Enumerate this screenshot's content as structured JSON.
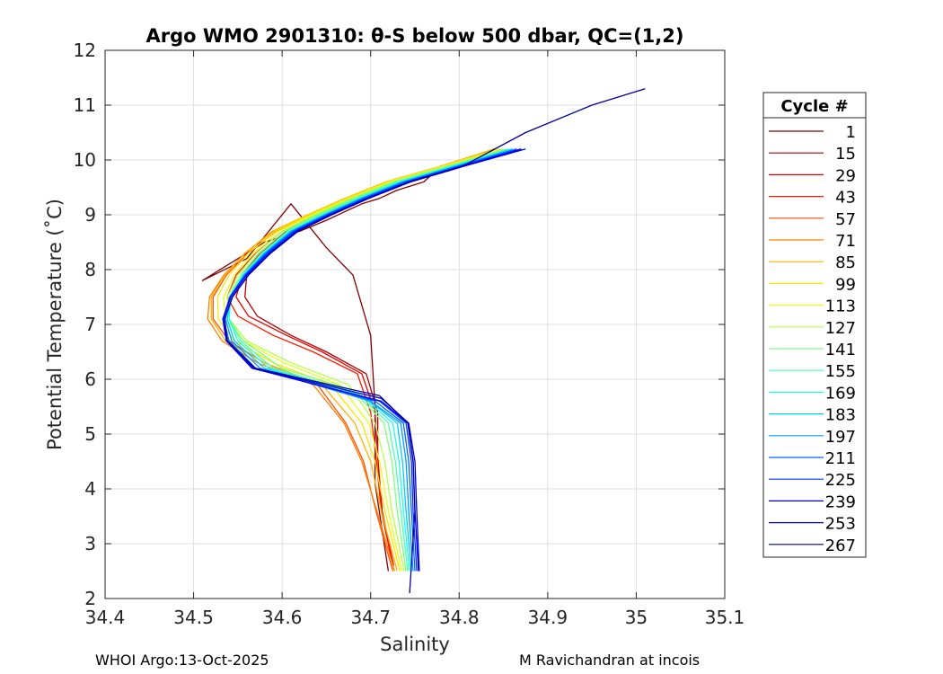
{
  "chart_data": {
    "type": "line",
    "title": "Argo WMO 2901310: θ-S below 500 dbar,  QC=(1,2)",
    "xlabel": "Salinity",
    "ylabel": "Potential Temperature (˚C)",
    "xlim": [
      34.4,
      35.1
    ],
    "ylim": [
      2,
      12
    ],
    "xticks": [
      34.4,
      34.5,
      34.6,
      34.7,
      34.8,
      34.9,
      35,
      35.1
    ],
    "xtick_labels": [
      "34.4",
      "34.5",
      "34.6",
      "34.7",
      "34.8",
      "34.9",
      "35",
      "35.1"
    ],
    "yticks": [
      2,
      3,
      4,
      5,
      6,
      7,
      8,
      9,
      10,
      11,
      12
    ],
    "ytick_labels": [
      "2",
      "3",
      "4",
      "5",
      "6",
      "7",
      "8",
      "9",
      "10",
      "11",
      "12"
    ],
    "grid": true,
    "legend": {
      "title": "Cycle #",
      "placement": "outside-right",
      "entries": [
        "1",
        "15",
        "29",
        "43",
        "57",
        "71",
        "85",
        "99",
        "113",
        "127",
        "141",
        "155",
        "169",
        "183",
        "197",
        "211",
        "225",
        "239",
        "253",
        "267"
      ],
      "colors": [
        "#800000",
        "#b30000",
        "#e60000",
        "#ff1a00",
        "#ff4d00",
        "#ff8000",
        "#ffb300",
        "#ffe600",
        "#e6ff1a",
        "#b3ff4d",
        "#80ff80",
        "#4dffb3",
        "#1affe6",
        "#00ccff",
        "#0099ff",
        "#0066ff",
        "#0033ff",
        "#0000ff",
        "#0000cc",
        "#000099"
      ]
    },
    "series": [
      {
        "name": "1",
        "x": [
          34.78,
          34.76,
          34.73,
          34.71,
          34.69,
          34.67,
          34.65,
          34.62,
          34.58,
          34.55,
          34.51,
          34.56,
          34.58,
          34.61,
          34.65,
          34.68,
          34.7,
          34.705,
          34.705,
          34.72
        ],
        "y": [
          9.9,
          9.6,
          9.45,
          9.3,
          9.2,
          9.05,
          8.9,
          8.7,
          8.5,
          8.2,
          7.8,
          8.2,
          8.6,
          9.2,
          8.4,
          7.9,
          6.8,
          5.5,
          4.1,
          2.5
        ]
      },
      {
        "name": "15",
        "x": [
          34.84,
          34.78,
          34.73,
          34.69,
          34.65,
          34.61,
          34.58,
          34.56,
          34.558,
          34.572,
          34.61,
          34.65,
          34.695,
          34.708,
          34.708,
          34.713,
          34.726
        ],
        "y": [
          10.2,
          9.87,
          9.6,
          9.3,
          9.0,
          8.7,
          8.3,
          7.9,
          7.5,
          7.15,
          6.8,
          6.5,
          6.1,
          5.4,
          4.6,
          3.6,
          2.6
        ]
      },
      {
        "name": "29",
        "x": [
          34.84,
          34.78,
          34.73,
          34.685,
          34.645,
          34.605,
          34.575,
          34.555,
          34.548,
          34.562,
          34.605,
          34.645,
          34.69,
          34.705,
          34.708,
          34.712,
          34.725
        ],
        "y": [
          10.2,
          9.87,
          9.6,
          9.3,
          9.0,
          8.7,
          8.3,
          7.9,
          7.5,
          7.15,
          6.8,
          6.5,
          6.1,
          5.4,
          4.6,
          3.6,
          2.6
        ]
      },
      {
        "name": "43",
        "x": [
          34.84,
          34.78,
          34.725,
          34.68,
          34.64,
          34.6,
          34.57,
          34.548,
          34.538,
          34.55,
          34.59,
          34.635,
          34.685,
          34.7,
          34.706,
          34.712,
          34.726
        ],
        "y": [
          10.2,
          9.87,
          9.6,
          9.3,
          9.0,
          8.7,
          8.3,
          7.9,
          7.5,
          7.15,
          6.8,
          6.5,
          6.1,
          5.4,
          4.6,
          3.6,
          2.6
        ]
      },
      {
        "name": "57",
        "x": [
          34.84,
          34.778,
          34.72,
          34.675,
          34.633,
          34.593,
          34.561,
          34.537,
          34.522,
          34.522,
          34.54,
          34.58,
          34.64,
          34.672,
          34.692,
          34.706,
          34.725
        ],
        "y": [
          10.2,
          9.87,
          9.6,
          9.3,
          9.0,
          8.7,
          8.3,
          7.9,
          7.5,
          7.1,
          6.7,
          6.3,
          5.9,
          5.2,
          4.5,
          3.6,
          2.5
        ]
      },
      {
        "name": "71",
        "x": [
          34.84,
          34.777,
          34.718,
          34.672,
          34.63,
          34.59,
          34.558,
          34.534,
          34.518,
          34.516,
          34.532,
          34.572,
          34.635,
          34.67,
          34.69,
          34.707,
          34.727
        ],
        "y": [
          10.2,
          9.87,
          9.6,
          9.3,
          9.0,
          8.7,
          8.3,
          7.9,
          7.5,
          7.1,
          6.7,
          6.3,
          5.9,
          5.2,
          4.5,
          3.6,
          2.5
        ]
      },
      {
        "name": "85",
        "x": [
          34.84,
          34.776,
          34.717,
          34.671,
          34.629,
          34.589,
          34.558,
          34.535,
          34.52,
          34.52,
          34.536,
          34.58,
          34.645,
          34.682,
          34.7,
          34.712,
          34.73
        ],
        "y": [
          10.2,
          9.87,
          9.6,
          9.3,
          9.0,
          8.7,
          8.3,
          7.9,
          7.5,
          7.1,
          6.7,
          6.3,
          5.9,
          5.2,
          4.5,
          3.6,
          2.5
        ]
      },
      {
        "name": "99",
        "x": [
          34.845,
          34.778,
          34.719,
          34.673,
          34.631,
          34.592,
          34.562,
          34.54,
          34.527,
          34.528,
          34.546,
          34.59,
          34.655,
          34.69,
          34.705,
          34.716,
          34.733
        ],
        "y": [
          10.2,
          9.87,
          9.6,
          9.3,
          9.0,
          8.7,
          8.3,
          7.9,
          7.5,
          7.1,
          6.7,
          6.3,
          5.9,
          5.2,
          4.5,
          3.6,
          2.5
        ]
      },
      {
        "name": "113",
        "x": [
          34.85,
          34.78,
          34.722,
          34.676,
          34.634,
          34.596,
          34.567,
          34.546,
          34.534,
          34.536,
          34.556,
          34.602,
          34.665,
          34.698,
          34.71,
          34.72,
          34.735
        ],
        "y": [
          10.2,
          9.87,
          9.6,
          9.3,
          9.0,
          8.7,
          8.3,
          7.9,
          7.5,
          7.1,
          6.7,
          6.3,
          5.9,
          5.2,
          4.5,
          3.6,
          2.5
        ]
      },
      {
        "name": "127",
        "x": [
          34.85,
          34.782,
          34.724,
          34.678,
          34.637,
          34.6,
          34.571,
          34.55,
          34.538,
          34.54,
          34.56,
          34.61,
          34.675,
          34.705,
          34.716,
          34.724,
          34.738
        ],
        "y": [
          10.2,
          9.87,
          9.6,
          9.3,
          9.0,
          8.7,
          8.3,
          7.9,
          7.5,
          7.1,
          6.7,
          6.3,
          5.9,
          5.2,
          4.5,
          3.6,
          2.5
        ]
      },
      {
        "name": "141",
        "x": [
          34.855,
          34.785,
          34.727,
          34.681,
          34.64,
          34.603,
          34.574,
          34.553,
          34.54,
          34.54,
          34.556,
          34.6,
          34.68,
          34.715,
          34.724,
          34.73,
          34.74
        ],
        "y": [
          10.2,
          9.87,
          9.6,
          9.3,
          9.0,
          8.7,
          8.3,
          7.9,
          7.5,
          7.1,
          6.7,
          6.2,
          5.8,
          5.2,
          4.5,
          3.6,
          2.5
        ]
      },
      {
        "name": "155",
        "x": [
          34.855,
          34.787,
          34.73,
          34.684,
          34.643,
          34.606,
          34.577,
          34.555,
          34.541,
          34.54,
          34.553,
          34.59,
          34.685,
          34.72,
          34.728,
          34.734,
          34.742
        ],
        "y": [
          10.2,
          9.87,
          9.6,
          9.3,
          9.0,
          8.7,
          8.3,
          7.9,
          7.5,
          7.1,
          6.7,
          6.2,
          5.75,
          5.2,
          4.5,
          3.6,
          2.5
        ]
      },
      {
        "name": "169",
        "x": [
          34.86,
          34.79,
          34.733,
          34.687,
          34.646,
          34.608,
          34.579,
          34.556,
          34.542,
          34.54,
          34.55,
          34.585,
          34.69,
          34.725,
          34.732,
          34.737,
          34.744
        ],
        "y": [
          10.2,
          9.87,
          9.6,
          9.3,
          9.0,
          8.7,
          8.3,
          7.9,
          7.5,
          7.1,
          6.7,
          6.2,
          5.7,
          5.2,
          4.5,
          3.6,
          2.5
        ]
      },
      {
        "name": "183",
        "x": [
          34.86,
          34.792,
          34.735,
          34.689,
          34.648,
          34.61,
          34.58,
          34.557,
          34.542,
          34.538,
          34.546,
          34.58,
          34.695,
          34.73,
          34.736,
          34.74,
          34.746
        ],
        "y": [
          10.2,
          9.87,
          9.6,
          9.3,
          9.0,
          8.7,
          8.3,
          7.9,
          7.5,
          7.1,
          6.7,
          6.2,
          5.65,
          5.2,
          4.5,
          3.6,
          2.5
        ]
      },
      {
        "name": "197",
        "x": [
          34.865,
          34.794,
          34.737,
          34.69,
          34.649,
          34.611,
          34.581,
          34.557,
          34.541,
          34.536,
          34.543,
          34.575,
          34.7,
          34.734,
          34.74,
          34.743,
          34.748
        ],
        "y": [
          10.2,
          9.87,
          9.6,
          9.3,
          9.0,
          8.7,
          8.3,
          7.9,
          7.5,
          7.1,
          6.7,
          6.2,
          5.6,
          5.2,
          4.5,
          3.6,
          2.5
        ]
      },
      {
        "name": "211",
        "x": [
          34.865,
          34.796,
          34.739,
          34.692,
          34.65,
          34.612,
          34.582,
          34.558,
          34.541,
          34.534,
          34.54,
          34.57,
          34.705,
          34.737,
          34.743,
          34.746,
          34.75
        ],
        "y": [
          10.2,
          9.87,
          9.6,
          9.3,
          9.0,
          8.7,
          8.3,
          7.9,
          7.5,
          7.1,
          6.7,
          6.2,
          5.6,
          5.2,
          4.5,
          3.6,
          2.5
        ]
      },
      {
        "name": "225",
        "x": [
          34.87,
          34.798,
          34.741,
          34.694,
          34.652,
          34.614,
          34.583,
          34.559,
          34.541,
          34.533,
          34.538,
          34.567,
          34.71,
          34.74,
          34.746,
          34.748,
          34.752
        ],
        "y": [
          10.2,
          9.87,
          9.6,
          9.3,
          9.0,
          8.7,
          8.3,
          7.9,
          7.5,
          7.1,
          6.7,
          6.2,
          5.6,
          5.2,
          4.5,
          3.6,
          2.5
        ]
      },
      {
        "name": "239",
        "x": [
          34.87,
          34.8,
          34.743,
          34.696,
          34.654,
          34.616,
          34.585,
          34.56,
          34.542,
          34.533,
          34.537,
          34.566,
          34.712,
          34.742,
          34.748,
          34.75,
          34.754
        ],
        "y": [
          10.2,
          9.87,
          9.6,
          9.3,
          9.0,
          8.7,
          8.3,
          7.9,
          7.5,
          7.1,
          6.7,
          6.2,
          5.6,
          5.2,
          4.5,
          3.6,
          2.5
        ]
      },
      {
        "name": "253",
        "x": [
          34.875,
          34.802,
          34.745,
          34.698,
          34.656,
          34.618,
          34.587,
          34.562,
          34.544,
          34.535,
          34.538,
          34.568,
          34.712,
          34.743,
          34.75,
          34.752,
          34.755
        ],
        "y": [
          10.2,
          9.87,
          9.6,
          9.3,
          9.0,
          8.7,
          8.3,
          7.9,
          7.5,
          7.1,
          6.7,
          6.2,
          5.65,
          5.2,
          4.5,
          3.6,
          2.5
        ]
      },
      {
        "name": "267",
        "x": [
          35.01,
          34.95,
          34.875,
          34.802,
          34.745,
          34.698,
          34.656,
          34.618,
          34.587,
          34.562,
          34.544,
          34.535,
          34.538,
          34.57,
          34.71,
          34.742,
          34.748,
          34.75,
          34.744
        ],
        "y": [
          11.3,
          11.0,
          10.5,
          9.87,
          9.6,
          9.3,
          9.0,
          8.7,
          8.3,
          7.9,
          7.5,
          7.1,
          6.7,
          6.2,
          5.7,
          5.2,
          4.5,
          3.6,
          2.1
        ]
      }
    ]
  },
  "footer": {
    "left": "WHOI Argo:13-Oct-2025",
    "right": "M Ravichandran at incois"
  }
}
